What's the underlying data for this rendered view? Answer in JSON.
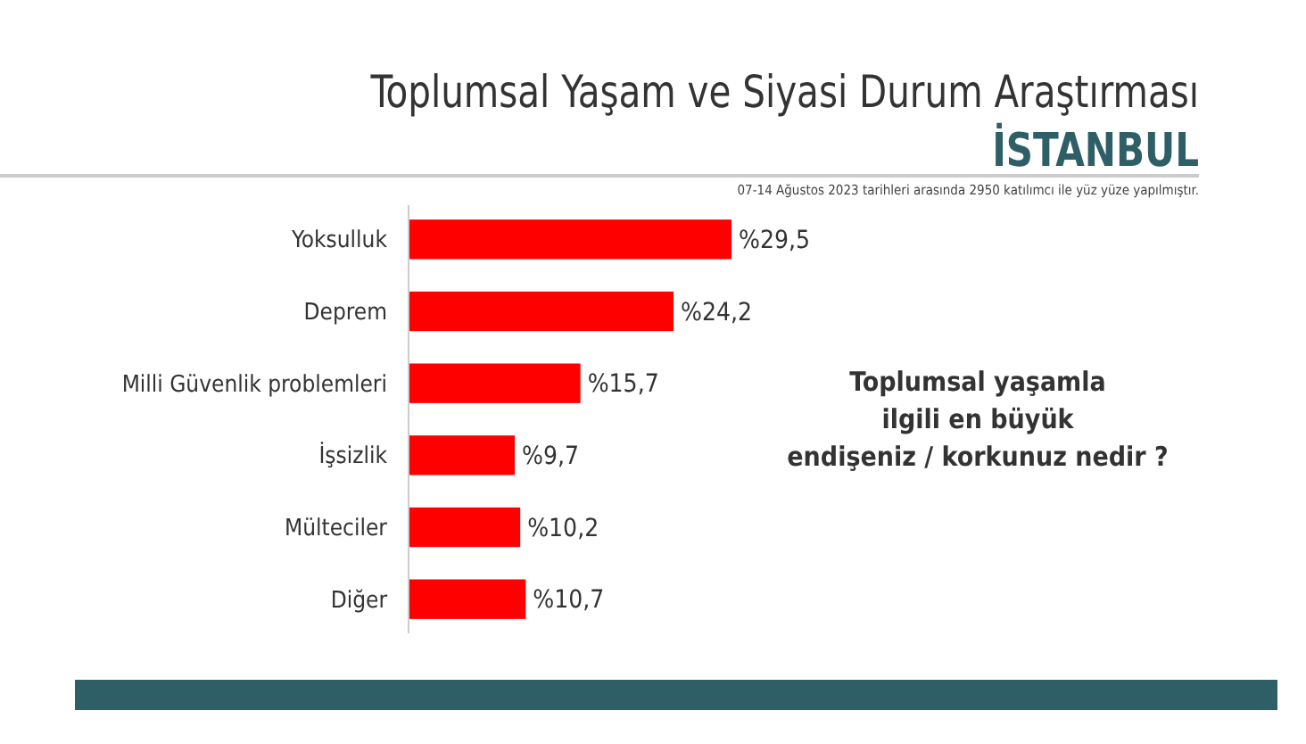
{
  "chart_data": {
    "type": "bar",
    "orientation": "horizontal",
    "title": "Toplumsal Yaşam ve Siyasi Durum Araştırması",
    "subtitle": "İSTANBUL",
    "annotations": [
      "07-14 Ağustos 2023 tarihleri arasında 2950 katılımcı ile yüz yüze yapılmıştır.",
      "Toplumsal yaşamla\nilgili en büyük\nendişeniz / korkunuz nedir ?"
    ],
    "categories": [
      "Yoksulluk",
      "Deprem",
      "Milli Güvenlik problemleri",
      "İşsizlik",
      "Mülteciler",
      "Diğer"
    ],
    "values": [
      29.5,
      24.2,
      15.7,
      9.7,
      10.2,
      10.7
    ],
    "value_labels": [
      "%29,5",
      "%24,2",
      "%15,7",
      "%9,7",
      "%10,2",
      "%10,7"
    ],
    "color": "#ff0000"
  }
}
